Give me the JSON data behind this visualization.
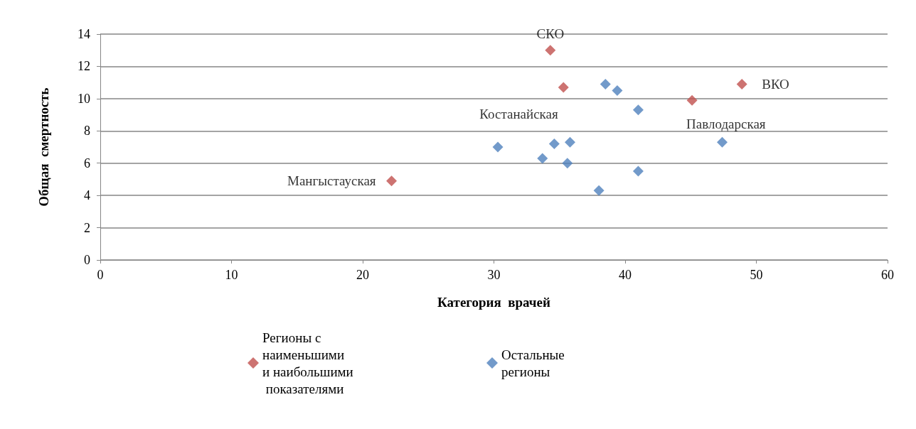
{
  "chart_data": {
    "type": "scatter",
    "xlabel": "Категория  врачей",
    "ylabel": "Общая  смертность",
    "xlim": [
      0,
      60
    ],
    "xticks": [
      0,
      10,
      20,
      30,
      40,
      50,
      60
    ],
    "ylim": [
      0,
      14
    ],
    "yticks": [
      0,
      2,
      4,
      6,
      8,
      10,
      12,
      14
    ],
    "grid": "y",
    "legend": "bottom",
    "marker": "diamond",
    "series": [
      {
        "name": "Регионы с наименьшими  и наибольшими показателями",
        "color": "#c0504d",
        "x": [
          22.2,
          34.3,
          35.3,
          45.1,
          48.9
        ],
        "values": [
          4.9,
          13.0,
          10.7,
          9.9,
          10.9
        ]
      },
      {
        "name": "Остальные регионы",
        "color": "#4f81bd",
        "x": [
          30.3,
          33.7,
          34.6,
          35.8,
          35.6,
          38.0,
          38.5,
          39.4,
          41.0,
          41.0,
          47.4
        ],
        "values": [
          7.0,
          6.3,
          7.2,
          7.3,
          6.0,
          4.3,
          10.9,
          10.5,
          9.3,
          5.5,
          7.3
        ]
      }
    ],
    "annotations": [
      {
        "text": "Мангыстауская",
        "x": 22.2,
        "y": 4.9
      },
      {
        "text": "СКО",
        "x": 34.3,
        "y": 13.0
      },
      {
        "text": "Костанайская",
        "x": 35.3,
        "y": 10.7
      },
      {
        "text": "Павлодарская",
        "x": 45.1,
        "y": 9.9
      },
      {
        "text": "ВКО",
        "x": 48.9,
        "y": 10.9
      }
    ]
  }
}
